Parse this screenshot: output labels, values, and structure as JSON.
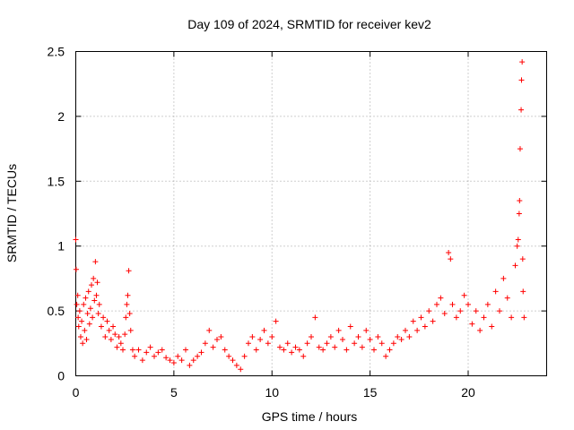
{
  "chart_data": {
    "type": "scatter",
    "title": "Day 109 of 2024, SRMTID for receiver kev2",
    "xlabel": "GPS time / hours",
    "ylabel": "SRMTID / TECUs",
    "xlim": [
      0,
      24
    ],
    "ylim": [
      0,
      2.5
    ],
    "x_ticks": [
      0,
      5,
      10,
      15,
      20
    ],
    "x_tick_labels": [
      "0",
      "5",
      "10",
      "15",
      "20"
    ],
    "y_ticks": [
      0,
      0.5,
      1,
      1.5,
      2,
      2.5
    ],
    "y_tick_labels": [
      "0",
      "0.5",
      "1",
      "1.5",
      "2",
      "2.5"
    ],
    "grid": true,
    "marker": "plus",
    "color": "#ff0000",
    "series": [
      {
        "name": "SRMTID",
        "points": [
          [
            0.0,
            1.05
          ],
          [
            0.02,
            0.82
          ],
          [
            0.05,
            0.55
          ],
          [
            0.1,
            0.62
          ],
          [
            0.12,
            0.45
          ],
          [
            0.15,
            0.38
          ],
          [
            0.2,
            0.5
          ],
          [
            0.25,
            0.3
          ],
          [
            0.3,
            0.42
          ],
          [
            0.35,
            0.25
          ],
          [
            0.4,
            0.55
          ],
          [
            0.45,
            0.35
          ],
          [
            0.5,
            0.6
          ],
          [
            0.55,
            0.28
          ],
          [
            0.6,
            0.48
          ],
          [
            0.65,
            0.65
          ],
          [
            0.7,
            0.4
          ],
          [
            0.75,
            0.52
          ],
          [
            0.8,
            0.7
          ],
          [
            0.85,
            0.45
          ],
          [
            0.9,
            0.75
          ],
          [
            0.95,
            0.58
          ],
          [
            1.0,
            0.88
          ],
          [
            1.05,
            0.62
          ],
          [
            1.1,
            0.72
          ],
          [
            1.15,
            0.48
          ],
          [
            1.2,
            0.55
          ],
          [
            1.3,
            0.38
          ],
          [
            1.4,
            0.45
          ],
          [
            1.5,
            0.3
          ],
          [
            1.6,
            0.42
          ],
          [
            1.7,
            0.35
          ],
          [
            1.8,
            0.28
          ],
          [
            1.9,
            0.38
          ],
          [
            2.0,
            0.32
          ],
          [
            2.1,
            0.22
          ],
          [
            2.2,
            0.3
          ],
          [
            2.3,
            0.25
          ],
          [
            2.4,
            0.2
          ],
          [
            2.5,
            0.32
          ],
          [
            2.55,
            0.45
          ],
          [
            2.6,
            0.55
          ],
          [
            2.65,
            0.62
          ],
          [
            2.7,
            0.81
          ],
          [
            2.75,
            0.48
          ],
          [
            2.8,
            0.35
          ],
          [
            2.9,
            0.2
          ],
          [
            3.0,
            0.15
          ],
          [
            3.2,
            0.2
          ],
          [
            3.4,
            0.12
          ],
          [
            3.6,
            0.18
          ],
          [
            3.8,
            0.22
          ],
          [
            4.0,
            0.15
          ],
          [
            4.2,
            0.18
          ],
          [
            4.4,
            0.2
          ],
          [
            4.6,
            0.14
          ],
          [
            4.8,
            0.12
          ],
          [
            5.0,
            0.1
          ],
          [
            5.2,
            0.15
          ],
          [
            5.4,
            0.12
          ],
          [
            5.6,
            0.2
          ],
          [
            5.8,
            0.08
          ],
          [
            6.0,
            0.12
          ],
          [
            6.2,
            0.15
          ],
          [
            6.4,
            0.18
          ],
          [
            6.6,
            0.25
          ],
          [
            6.8,
            0.35
          ],
          [
            7.0,
            0.22
          ],
          [
            7.2,
            0.28
          ],
          [
            7.4,
            0.3
          ],
          [
            7.6,
            0.2
          ],
          [
            7.8,
            0.15
          ],
          [
            8.0,
            0.12
          ],
          [
            8.2,
            0.08
          ],
          [
            8.4,
            0.05
          ],
          [
            8.6,
            0.15
          ],
          [
            8.8,
            0.25
          ],
          [
            9.0,
            0.3
          ],
          [
            9.2,
            0.2
          ],
          [
            9.4,
            0.28
          ],
          [
            9.6,
            0.35
          ],
          [
            9.8,
            0.25
          ],
          [
            10.0,
            0.3
          ],
          [
            10.2,
            0.42
          ],
          [
            10.4,
            0.22
          ],
          [
            10.6,
            0.2
          ],
          [
            10.8,
            0.25
          ],
          [
            11.0,
            0.18
          ],
          [
            11.2,
            0.22
          ],
          [
            11.4,
            0.2
          ],
          [
            11.6,
            0.15
          ],
          [
            11.8,
            0.25
          ],
          [
            12.0,
            0.3
          ],
          [
            12.2,
            0.45
          ],
          [
            12.4,
            0.22
          ],
          [
            12.6,
            0.2
          ],
          [
            12.8,
            0.25
          ],
          [
            13.0,
            0.3
          ],
          [
            13.2,
            0.22
          ],
          [
            13.4,
            0.35
          ],
          [
            13.6,
            0.28
          ],
          [
            13.8,
            0.2
          ],
          [
            14.0,
            0.38
          ],
          [
            14.2,
            0.25
          ],
          [
            14.4,
            0.3
          ],
          [
            14.6,
            0.22
          ],
          [
            14.8,
            0.35
          ],
          [
            15.0,
            0.28
          ],
          [
            15.2,
            0.2
          ],
          [
            15.4,
            0.3
          ],
          [
            15.6,
            0.25
          ],
          [
            15.8,
            0.15
          ],
          [
            16.0,
            0.2
          ],
          [
            16.2,
            0.25
          ],
          [
            16.4,
            0.3
          ],
          [
            16.6,
            0.28
          ],
          [
            16.8,
            0.35
          ],
          [
            17.0,
            0.3
          ],
          [
            17.2,
            0.42
          ],
          [
            17.4,
            0.35
          ],
          [
            17.6,
            0.45
          ],
          [
            17.8,
            0.38
          ],
          [
            18.0,
            0.5
          ],
          [
            18.2,
            0.42
          ],
          [
            18.4,
            0.55
          ],
          [
            18.6,
            0.6
          ],
          [
            18.8,
            0.48
          ],
          [
            19.0,
            0.95
          ],
          [
            19.1,
            0.9
          ],
          [
            19.2,
            0.55
          ],
          [
            19.4,
            0.45
          ],
          [
            19.6,
            0.5
          ],
          [
            19.8,
            0.62
          ],
          [
            20.0,
            0.55
          ],
          [
            20.2,
            0.4
          ],
          [
            20.4,
            0.5
          ],
          [
            20.6,
            0.35
          ],
          [
            20.8,
            0.45
          ],
          [
            21.0,
            0.55
          ],
          [
            21.2,
            0.38
          ],
          [
            21.4,
            0.65
          ],
          [
            21.6,
            0.5
          ],
          [
            21.8,
            0.75
          ],
          [
            22.0,
            0.6
          ],
          [
            22.2,
            0.45
          ],
          [
            22.4,
            0.85
          ],
          [
            22.5,
            1.0
          ],
          [
            22.55,
            1.05
          ],
          [
            22.6,
            1.25
          ],
          [
            22.62,
            1.35
          ],
          [
            22.65,
            1.75
          ],
          [
            22.7,
            2.05
          ],
          [
            22.72,
            2.28
          ],
          [
            22.75,
            2.42
          ],
          [
            22.78,
            0.9
          ],
          [
            22.8,
            0.65
          ],
          [
            22.85,
            0.45
          ]
        ]
      }
    ]
  }
}
